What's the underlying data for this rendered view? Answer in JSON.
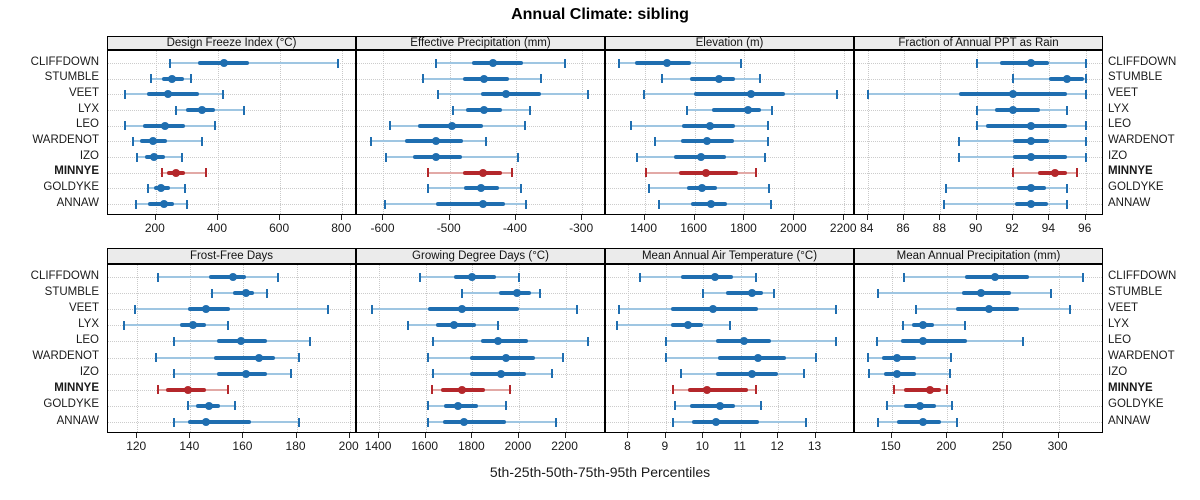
{
  "title": "Annual Climate: sibling",
  "caption": "5th-25th-50th-75th-95th Percentiles",
  "sites": [
    "CLIFFDOWN",
    "STUMBLE",
    "VEET",
    "LYX",
    "LEO",
    "WARDENOT",
    "IZO",
    "MINNYE",
    "GOLDYKE",
    "ANNAW"
  ],
  "highlight_site": "MINNYE",
  "colors": {
    "series": "#1f6eb0",
    "series_light": "#9fc6e2",
    "highlight": "#b4272b",
    "highlight_light": "#e2a9a6",
    "strip_bg": "#ebebeb",
    "grid": "#c9c9c9",
    "border": "#000000"
  },
  "percentile_order": [
    "p5",
    "p25",
    "p50",
    "p75",
    "p95"
  ],
  "chart_data": [
    {
      "type": "dotplot-interval",
      "title": "Design Freeze Index (°C)",
      "xlim": [
        46,
        841
      ],
      "ticks": [
        200,
        400,
        600,
        800
      ],
      "series": [
        {
          "name": "CLIFFDOWN",
          "values": [
            245,
            335,
            420,
            500,
            785
          ]
        },
        {
          "name": "STUMBLE",
          "values": [
            185,
            220,
            253,
            290,
            312
          ]
        },
        {
          "name": "VEET",
          "values": [
            100,
            170,
            240,
            340,
            415
          ]
        },
        {
          "name": "LYX",
          "values": [
            265,
            296,
            347,
            392,
            485
          ]
        },
        {
          "name": "LEO",
          "values": [
            100,
            160,
            230,
            295,
            390
          ]
        },
        {
          "name": "WARDENOT",
          "values": [
            125,
            150,
            190,
            235,
            350
          ]
        },
        {
          "name": "IZO",
          "values": [
            140,
            165,
            195,
            230,
            285
          ]
        },
        {
          "name": "MINNYE",
          "values": [
            220,
            235,
            265,
            295,
            360
          ]
        },
        {
          "name": "GOLDYKE",
          "values": [
            175,
            195,
            215,
            245,
            295
          ]
        },
        {
          "name": "ANNAW",
          "values": [
            135,
            175,
            225,
            260,
            300
          ]
        }
      ]
    },
    {
      "type": "dotplot-interval",
      "title": "Effective Precipitation (mm)",
      "xlim": [
        -640,
        -267
      ],
      "ticks": [
        -600,
        -500,
        -400,
        -300
      ],
      "series": [
        {
          "name": "CLIFFDOWN",
          "values": [
            -520,
            -467,
            -435,
            -390,
            -326
          ]
        },
        {
          "name": "STUMBLE",
          "values": [
            -540,
            -480,
            -448,
            -411,
            -362
          ]
        },
        {
          "name": "VEET",
          "values": [
            -518,
            -452,
            -415,
            -362,
            -291
          ]
        },
        {
          "name": "LYX",
          "values": [
            -495,
            -475,
            -448,
            -421,
            -378
          ]
        },
        {
          "name": "LEO",
          "values": [
            -590,
            -548,
            -496,
            -450,
            -387
          ]
        },
        {
          "name": "WARDENOT",
          "values": [
            -619,
            -568,
            -520,
            -480,
            -445
          ]
        },
        {
          "name": "IZO",
          "values": [
            -596,
            -555,
            -520,
            -482,
            -397
          ]
        },
        {
          "name": "MINNYE",
          "values": [
            -533,
            -480,
            -449,
            -421,
            -406
          ]
        },
        {
          "name": "GOLDYKE",
          "values": [
            -533,
            -478,
            -453,
            -426,
            -393
          ]
        },
        {
          "name": "ANNAW",
          "values": [
            -598,
            -520,
            -450,
            -416,
            -385
          ]
        }
      ]
    },
    {
      "type": "dotplot-interval",
      "title": "Elevation (m)",
      "xlim": [
        1245,
        2235
      ],
      "ticks": [
        1400,
        1600,
        1800,
        2000,
        2200
      ],
      "series": [
        {
          "name": "CLIFFDOWN",
          "values": [
            1296,
            1362,
            1489,
            1587,
            1787
          ]
        },
        {
          "name": "STUMBLE",
          "values": [
            1469,
            1583,
            1699,
            1763,
            1863
          ]
        },
        {
          "name": "VEET",
          "values": [
            1396,
            1596,
            1827,
            1963,
            2169
          ]
        },
        {
          "name": "LYX",
          "values": [
            1569,
            1669,
            1813,
            1867,
            1912
          ]
        },
        {
          "name": "LEO",
          "values": [
            1347,
            1549,
            1663,
            1763,
            1893
          ]
        },
        {
          "name": "WARDENOT",
          "values": [
            1440,
            1547,
            1649,
            1760,
            1896
          ]
        },
        {
          "name": "IZO",
          "values": [
            1369,
            1516,
            1625,
            1725,
            1883
          ]
        },
        {
          "name": "MINNYE",
          "values": [
            1405,
            1539,
            1644,
            1773,
            1845
          ]
        },
        {
          "name": "GOLDYKE",
          "values": [
            1416,
            1569,
            1629,
            1689,
            1899
          ]
        },
        {
          "name": "ANNAW",
          "values": [
            1459,
            1587,
            1667,
            1729,
            1905
          ]
        }
      ]
    },
    {
      "type": "dotplot-interval",
      "title": "Fraction of Annual PPT as Rain",
      "xlim": [
        83.3,
        96.9
      ],
      "ticks": [
        84,
        86,
        88,
        90,
        92,
        94,
        96
      ],
      "series": [
        {
          "name": "CLIFFDOWN",
          "values": [
            90.0,
            91.3,
            93.0,
            94.0,
            96.0
          ]
        },
        {
          "name": "STUMBLE",
          "values": [
            92.0,
            94.0,
            95.0,
            95.9,
            96.0
          ]
        },
        {
          "name": "VEET",
          "values": [
            84.0,
            89.0,
            92.0,
            95.0,
            96.0
          ]
        },
        {
          "name": "LYX",
          "values": [
            90.0,
            91.0,
            92.0,
            93.5,
            95.0
          ]
        },
        {
          "name": "LEO",
          "values": [
            90.0,
            90.5,
            93.0,
            95.0,
            96.0
          ]
        },
        {
          "name": "WARDENOT",
          "values": [
            89.0,
            92.0,
            93.0,
            94.0,
            96.0
          ]
        },
        {
          "name": "IZO",
          "values": [
            89.0,
            92.0,
            93.0,
            95.0,
            96.0
          ]
        },
        {
          "name": "MINNYE",
          "values": [
            92.0,
            93.4,
            94.3,
            95.0,
            95.5
          ]
        },
        {
          "name": "GOLDYKE",
          "values": [
            88.3,
            92.2,
            93.0,
            93.8,
            95.0
          ]
        },
        {
          "name": "ANNAW",
          "values": [
            88.2,
            92.1,
            93.0,
            93.9,
            95.0
          ]
        }
      ]
    },
    {
      "type": "dotplot-interval",
      "title": "Frost-Free Days",
      "xlim": [
        109,
        202
      ],
      "ticks": [
        120,
        140,
        160,
        180,
        200
      ],
      "series": [
        {
          "name": "CLIFFDOWN",
          "values": [
            128,
            147,
            156,
            161,
            173
          ]
        },
        {
          "name": "STUMBLE",
          "values": [
            148,
            156,
            161,
            164,
            169
          ]
        },
        {
          "name": "VEET",
          "values": [
            119,
            139,
            146,
            155,
            192
          ]
        },
        {
          "name": "LYX",
          "values": [
            115,
            136,
            141,
            146,
            154
          ]
        },
        {
          "name": "LEO",
          "values": [
            134,
            150,
            159,
            169,
            185
          ]
        },
        {
          "name": "WARDENOT",
          "values": [
            127,
            149,
            166,
            172,
            181
          ]
        },
        {
          "name": "IZO",
          "values": [
            134,
            150,
            161,
            169,
            178
          ]
        },
        {
          "name": "MINNYE",
          "values": [
            128,
            131,
            139,
            146,
            154
          ]
        },
        {
          "name": "GOLDYKE",
          "values": [
            139,
            142,
            147,
            151,
            157
          ]
        },
        {
          "name": "ANNAW",
          "values": [
            134,
            139,
            146,
            163,
            181
          ]
        }
      ]
    },
    {
      "type": "dotplot-interval",
      "title": "Growing Degree Days (°C)",
      "xlim": [
        1305,
        2365
      ],
      "ticks": [
        1400,
        1600,
        1800,
        2000,
        2200
      ],
      "series": [
        {
          "name": "CLIFFDOWN",
          "values": [
            1575,
            1720,
            1800,
            1900,
            2000
          ]
        },
        {
          "name": "STUMBLE",
          "values": [
            1755,
            1915,
            1990,
            2050,
            2090
          ]
        },
        {
          "name": "VEET",
          "values": [
            1370,
            1610,
            1755,
            2000,
            2250
          ]
        },
        {
          "name": "LYX",
          "values": [
            1525,
            1645,
            1720,
            1815,
            1910
          ]
        },
        {
          "name": "LEO",
          "values": [
            1630,
            1835,
            1910,
            2040,
            2295
          ]
        },
        {
          "name": "WARDENOT",
          "values": [
            1610,
            1790,
            1945,
            2070,
            2190
          ]
        },
        {
          "name": "IZO",
          "values": [
            1630,
            1790,
            1925,
            2030,
            2140
          ]
        },
        {
          "name": "MINNYE",
          "values": [
            1625,
            1665,
            1755,
            1855,
            1960
          ]
        },
        {
          "name": "GOLDYKE",
          "values": [
            1610,
            1680,
            1740,
            1825,
            1945
          ]
        },
        {
          "name": "ANNAW",
          "values": [
            1610,
            1675,
            1765,
            1945,
            2160
          ]
        }
      ]
    },
    {
      "type": "dotplot-interval",
      "title": "Mean Annual Air Temperature (°C)",
      "xlim": [
        7.4,
        14.0
      ],
      "ticks": [
        8,
        9,
        10,
        11,
        12,
        13
      ],
      "series": [
        {
          "name": "CLIFFDOWN",
          "values": [
            8.3,
            9.4,
            10.3,
            10.8,
            11.4
          ]
        },
        {
          "name": "STUMBLE",
          "values": [
            10.0,
            10.6,
            11.3,
            11.6,
            11.9
          ]
        },
        {
          "name": "VEET",
          "values": [
            7.75,
            9.15,
            10.25,
            11.45,
            13.55
          ]
        },
        {
          "name": "LYX",
          "values": [
            7.7,
            9.15,
            9.6,
            10.0,
            10.7
          ]
        },
        {
          "name": "LEO",
          "values": [
            9.0,
            10.35,
            11.1,
            11.8,
            13.55
          ]
        },
        {
          "name": "WARDENOT",
          "values": [
            9.0,
            10.4,
            11.45,
            12.2,
            13.0
          ]
        },
        {
          "name": "IZO",
          "values": [
            9.4,
            10.35,
            11.3,
            12.0,
            12.7
          ]
        },
        {
          "name": "MINNYE",
          "values": [
            9.2,
            9.6,
            10.1,
            11.2,
            11.4
          ]
        },
        {
          "name": "GOLDYKE",
          "values": [
            9.25,
            9.65,
            10.45,
            10.85,
            11.55
          ]
        },
        {
          "name": "ANNAW",
          "values": [
            9.2,
            9.7,
            10.35,
            11.5,
            12.75
          ]
        }
      ]
    },
    {
      "type": "dotplot-interval",
      "title": "Mean Annual Precipitation (mm)",
      "xlim": [
        117,
        339
      ],
      "ticks": [
        150,
        200,
        250,
        300
      ],
      "series": [
        {
          "name": "CLIFFDOWN",
          "values": [
            161,
            216,
            243,
            273,
            322
          ]
        },
        {
          "name": "STUMBLE",
          "values": [
            138,
            213,
            230,
            257,
            293
          ]
        },
        {
          "name": "VEET",
          "values": [
            172,
            208,
            237,
            264,
            310
          ]
        },
        {
          "name": "LYX",
          "values": [
            160,
            168,
            178,
            188,
            216
          ]
        },
        {
          "name": "LEO",
          "values": [
            137,
            158,
            178,
            218,
            268
          ]
        },
        {
          "name": "WARDENOT",
          "values": [
            129,
            141,
            155,
            172,
            203
          ]
        },
        {
          "name": "IZO",
          "values": [
            130,
            143,
            155,
            172,
            202
          ]
        },
        {
          "name": "MINNYE",
          "values": [
            152,
            161,
            184,
            194,
            200
          ]
        },
        {
          "name": "GOLDYKE",
          "values": [
            146,
            161,
            175,
            190,
            204
          ]
        },
        {
          "name": "ANNAW",
          "values": [
            138,
            155,
            178,
            194,
            209
          ]
        }
      ]
    }
  ]
}
